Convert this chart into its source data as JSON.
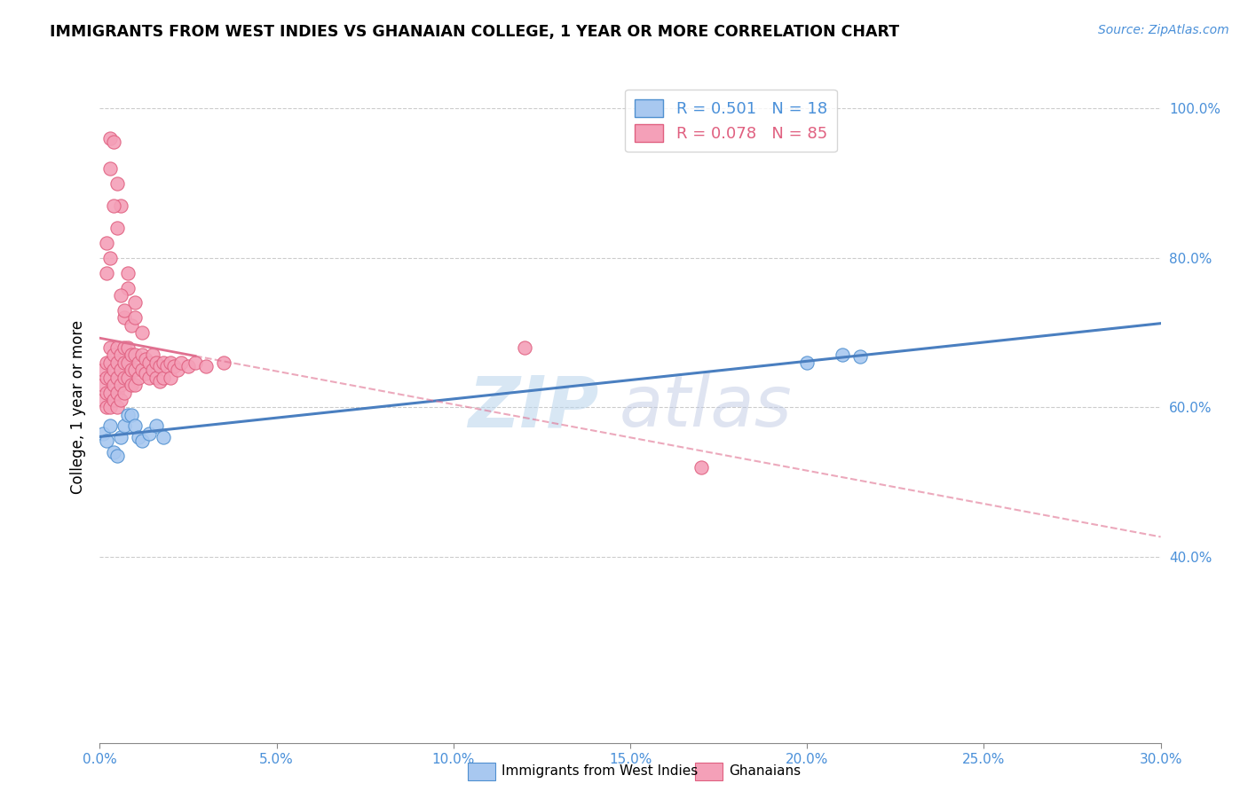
{
  "title": "IMMIGRANTS FROM WEST INDIES VS GHANAIAN COLLEGE, 1 YEAR OR MORE CORRELATION CHART",
  "source": "Source: ZipAtlas.com",
  "ylabel": "College, 1 year or more",
  "xmin": 0.0,
  "xmax": 0.3,
  "ymin": 0.15,
  "ymax": 1.05,
  "legend_r1": "R = 0.501",
  "legend_n1": "N = 18",
  "legend_r2": "R = 0.078",
  "legend_n2": "N = 85",
  "blue_color": "#a8c8f0",
  "pink_color": "#f4a0b8",
  "blue_edge_color": "#5090d0",
  "pink_edge_color": "#e06080",
  "blue_line_color": "#4a7fc0",
  "pink_line_color": "#e07090",
  "watermark_zip": "ZIP",
  "watermark_atlas": "atlas",
  "blue_x": [
    0.001,
    0.002,
    0.003,
    0.004,
    0.005,
    0.006,
    0.007,
    0.008,
    0.009,
    0.01,
    0.011,
    0.012,
    0.014,
    0.016,
    0.018,
    0.2,
    0.21,
    0.215
  ],
  "blue_y": [
    0.565,
    0.555,
    0.575,
    0.54,
    0.535,
    0.56,
    0.575,
    0.59,
    0.59,
    0.575,
    0.56,
    0.555,
    0.565,
    0.575,
    0.56,
    0.66,
    0.67,
    0.668
  ],
  "pink_x": [
    0.001,
    0.001,
    0.001,
    0.002,
    0.002,
    0.002,
    0.002,
    0.003,
    0.003,
    0.003,
    0.003,
    0.003,
    0.004,
    0.004,
    0.004,
    0.004,
    0.005,
    0.005,
    0.005,
    0.005,
    0.005,
    0.006,
    0.006,
    0.006,
    0.006,
    0.007,
    0.007,
    0.007,
    0.007,
    0.008,
    0.008,
    0.008,
    0.009,
    0.009,
    0.009,
    0.01,
    0.01,
    0.01,
    0.011,
    0.011,
    0.012,
    0.012,
    0.013,
    0.013,
    0.014,
    0.014,
    0.015,
    0.015,
    0.016,
    0.016,
    0.017,
    0.017,
    0.018,
    0.018,
    0.019,
    0.02,
    0.02,
    0.021,
    0.022,
    0.023,
    0.025,
    0.027,
    0.03,
    0.035,
    0.007,
    0.009,
    0.012,
    0.005,
    0.006,
    0.003,
    0.004,
    0.003,
    0.004,
    0.005,
    0.002,
    0.003,
    0.002,
    0.008,
    0.01,
    0.007,
    0.006,
    0.008,
    0.01,
    0.12,
    0.17
  ],
  "pink_y": [
    0.65,
    0.63,
    0.61,
    0.66,
    0.64,
    0.62,
    0.6,
    0.68,
    0.66,
    0.64,
    0.62,
    0.6,
    0.67,
    0.65,
    0.63,
    0.61,
    0.68,
    0.66,
    0.64,
    0.62,
    0.6,
    0.67,
    0.65,
    0.63,
    0.61,
    0.68,
    0.66,
    0.64,
    0.62,
    0.68,
    0.66,
    0.64,
    0.67,
    0.65,
    0.63,
    0.67,
    0.65,
    0.63,
    0.66,
    0.64,
    0.67,
    0.65,
    0.665,
    0.645,
    0.66,
    0.64,
    0.67,
    0.65,
    0.66,
    0.64,
    0.655,
    0.635,
    0.66,
    0.64,
    0.655,
    0.66,
    0.64,
    0.655,
    0.65,
    0.66,
    0.655,
    0.66,
    0.655,
    0.66,
    0.72,
    0.71,
    0.7,
    0.9,
    0.87,
    0.96,
    0.955,
    0.92,
    0.87,
    0.84,
    0.82,
    0.8,
    0.78,
    0.76,
    0.74,
    0.73,
    0.75,
    0.78,
    0.72,
    0.68,
    0.52
  ]
}
